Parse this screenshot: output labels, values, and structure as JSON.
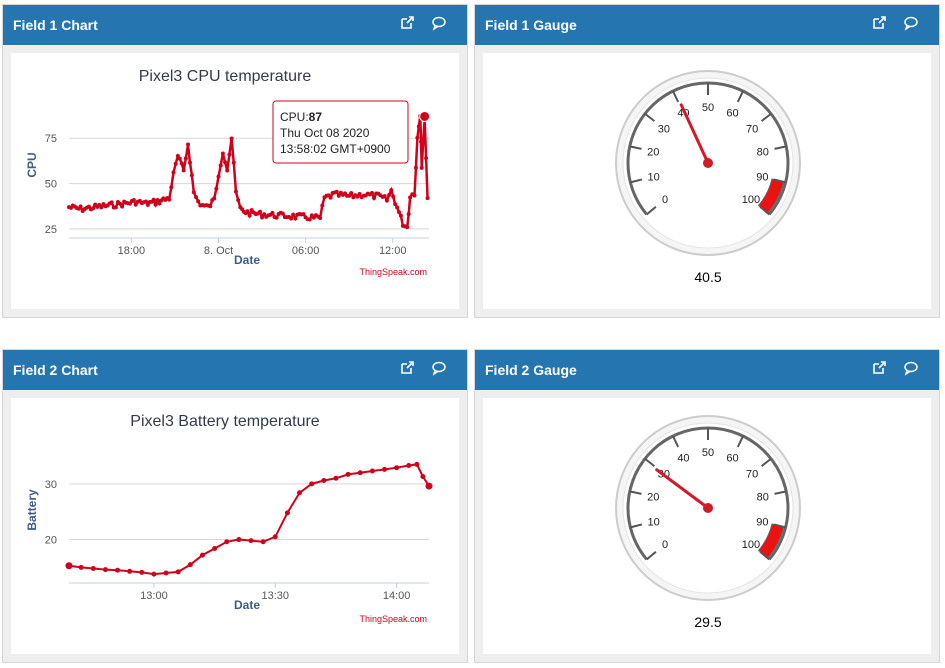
{
  "colors": {
    "header": "#2475b0",
    "series": "#d0021b",
    "title": "#333a4a",
    "axis_label": "#3d5c8a"
  },
  "panels": {
    "field1_chart": {
      "title": "Field 1 Chart"
    },
    "field1_gauge": {
      "title": "Field 1 Gauge"
    },
    "field2_chart": {
      "title": "Field 2 Chart"
    },
    "field2_gauge": {
      "title": "Field 2 Gauge"
    }
  },
  "icons": {
    "open": "external-link-icon",
    "comment": "comment-icon"
  },
  "chart1": {
    "title": "Pixel3 CPU temperature",
    "ylabel": "CPU",
    "xlabel": "Date",
    "credit": "ThingSpeak.com",
    "tooltip": {
      "label": "CPU:",
      "value": "87",
      "date": "Thu Oct 08 2020",
      "time": "13:58:02 GMT+0900"
    }
  },
  "chart2": {
    "title": "Pixel3 Battery temperature",
    "ylabel": "Battery",
    "xlabel": "Date",
    "credit": "ThingSpeak.com"
  },
  "gauge1": {
    "value_text": "40.5"
  },
  "gauge2": {
    "value_text": "29.5"
  },
  "chart_data": [
    {
      "type": "line",
      "title": "Pixel3 CPU temperature",
      "xlabel": "Date",
      "ylabel": "CPU",
      "x_ticks": [
        "18:00",
        "8. Oct",
        "06:00",
        "12:00"
      ],
      "x_tick_hours": [
        18,
        24,
        30,
        36
      ],
      "y_ticks": [
        25,
        50,
        75
      ],
      "xlim": [
        13.7,
        38.5
      ],
      "ylim": [
        20,
        90
      ],
      "series": [
        {
          "name": "CPU",
          "x": [
            13.7,
            14.5,
            15.5,
            16.5,
            17.5,
            18.3,
            19.0,
            19.8,
            20.6,
            20.9,
            21.2,
            21.6,
            21.9,
            22.3,
            22.6,
            22.9,
            23.3,
            23.7,
            24.0,
            24.3,
            24.6,
            24.9,
            25.2,
            25.5,
            26.0,
            27.0,
            28.0,
            29.0,
            30.0,
            31.0,
            31.3,
            32.0,
            33.0,
            34.0,
            35.0,
            35.6,
            35.9,
            36.3,
            36.7,
            37.0,
            37.2,
            37.5,
            37.7,
            37.9,
            38.0,
            38.2,
            38.4
          ],
          "y": [
            37,
            36,
            37,
            38,
            39,
            40,
            39,
            40,
            42,
            55,
            65,
            57,
            72,
            45,
            40,
            38,
            37,
            41,
            55,
            68,
            58,
            75,
            45,
            36,
            34,
            33,
            32.5,
            32,
            31.5,
            31,
            42,
            44,
            43,
            44,
            43,
            41,
            46,
            37,
            28,
            26,
            43,
            45,
            75,
            88,
            60,
            87,
            42
          ]
        }
      ]
    },
    {
      "type": "line",
      "title": "Pixel3 Battery temperature",
      "xlabel": "Date",
      "ylabel": "Battery",
      "x_ticks": [
        "13:00",
        "13:30",
        "14:00"
      ],
      "x_tick_min": [
        0,
        30,
        60
      ],
      "y_ticks": [
        20,
        30
      ],
      "xlim": [
        -21,
        68
      ],
      "ylim": [
        12.2,
        35
      ],
      "series": [
        {
          "name": "Battery",
          "x": [
            -21,
            -18,
            -15,
            -12,
            -9,
            -6,
            -3,
            0,
            3,
            6,
            9,
            12,
            15,
            18,
            21,
            24,
            27,
            30,
            33,
            36,
            39,
            42,
            45,
            48,
            51,
            54,
            57,
            60,
            63,
            65,
            66.5,
            68
          ],
          "y": [
            15.3,
            15.0,
            14.8,
            14.6,
            14.5,
            14.3,
            14.1,
            13.8,
            14.0,
            14.2,
            15.5,
            17.2,
            18.4,
            19.6,
            20.0,
            19.8,
            19.6,
            20.5,
            24.8,
            28.4,
            30.0,
            30.6,
            31.0,
            31.7,
            32.0,
            32.3,
            32.6,
            32.9,
            33.3,
            33.5,
            31.3,
            29.6
          ]
        }
      ]
    }
  ],
  "gauges": [
    {
      "min": 0,
      "max": 100,
      "value": 40.5,
      "ticks": [
        0,
        10,
        20,
        30,
        40,
        50,
        60,
        70,
        80,
        90,
        100
      ],
      "red_band": [
        90,
        100
      ]
    },
    {
      "min": 0,
      "max": 100,
      "value": 29.5,
      "ticks": [
        0,
        10,
        20,
        30,
        40,
        50,
        60,
        70,
        80,
        90,
        100
      ],
      "red_band": [
        90,
        100
      ]
    }
  ]
}
